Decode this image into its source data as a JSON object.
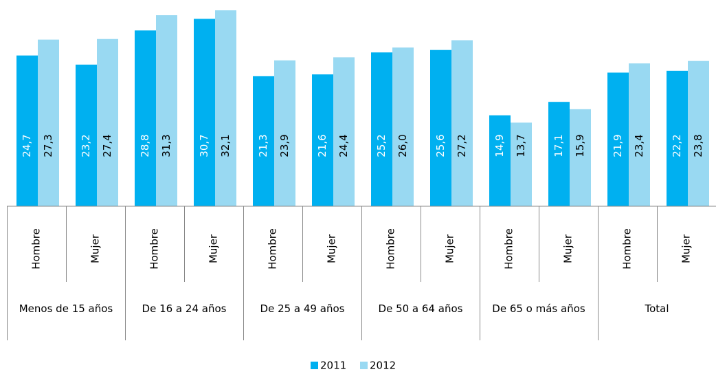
{
  "chart_data": {
    "type": "bar",
    "categories": [
      "Hombre",
      "Mujer",
      "Hombre",
      "Mujer",
      "Hombre",
      "Mujer",
      "Hombre",
      "Mujer",
      "Hombre",
      "Mujer",
      "Hombre",
      "Mujer"
    ],
    "category_groups": [
      "Menos de 15 años",
      "De 16 a 24 años",
      "De 25 a 49 años",
      "De 50 a 64 años",
      "De 65 o más años",
      "Total"
    ],
    "series": [
      {
        "name": "2011",
        "color": "#00b0f0",
        "values": [
          24.7,
          23.2,
          28.8,
          30.7,
          21.3,
          21.6,
          25.2,
          25.6,
          14.9,
          17.1,
          21.9,
          22.2
        ],
        "value_labels": [
          "24,7",
          "23,2",
          "28,8",
          "30,7",
          "21,3",
          "21,6",
          "25,2",
          "25,6",
          "14,9",
          "17,1",
          "21,9",
          "22,2"
        ]
      },
      {
        "name": "2012",
        "color": "#99d9f2",
        "values": [
          27.3,
          27.4,
          31.3,
          32.1,
          23.9,
          24.4,
          26.0,
          27.2,
          13.7,
          15.9,
          23.4,
          23.8
        ],
        "value_labels": [
          "27,3",
          "27,4",
          "31,3",
          "32,1",
          "23,9",
          "24,4",
          "26,0",
          "27,2",
          "13,7",
          "15,9",
          "23,4",
          "23,8"
        ]
      }
    ],
    "ylim": [
      0,
      33
    ],
    "legend": "bottom"
  }
}
